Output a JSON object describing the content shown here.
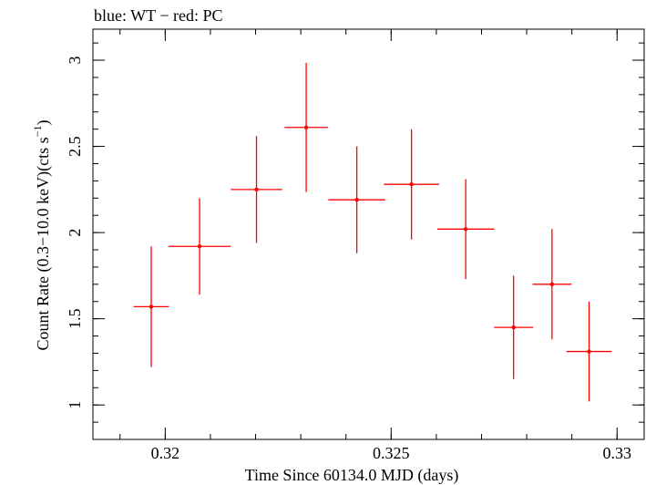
{
  "chart_data": {
    "type": "scatter",
    "title": "blue: WT − red: PC",
    "xlabel": "Time Since 60134.0 MJD (days)",
    "ylabel_main": "Count Rate (0.3−10.0 keV)(cts s",
    "ylabel_sup": "−1",
    "ylabel_close": ")",
    "xlim": [
      0.3184,
      0.3306
    ],
    "ylim": [
      0.8,
      3.18
    ],
    "x_ticks": [
      {
        "value": 0.32,
        "label": "0.32"
      },
      {
        "value": 0.325,
        "label": "0.325"
      },
      {
        "value": 0.33,
        "label": "0.33"
      }
    ],
    "y_ticks": [
      {
        "value": 1,
        "label": "1"
      },
      {
        "value": 1.5,
        "label": "1.5"
      },
      {
        "value": 2,
        "label": "2"
      },
      {
        "value": 2.5,
        "label": "2.5"
      },
      {
        "value": 3,
        "label": "3"
      }
    ],
    "x_minor_step": 0.001,
    "y_minor_step": 0.1,
    "grid": false,
    "series": [
      {
        "color": "#ff0000",
        "points": [
          {
            "x": 0.31969,
            "xerr": 0.00039,
            "y": 1.57,
            "yerr": 0.35
          },
          {
            "x": 0.32076,
            "xerr": 0.00069,
            "y": 1.92,
            "yerr": 0.28
          },
          {
            "x": 0.32202,
            "xerr": 0.00057,
            "y": 2.25,
            "yerr": 0.31
          },
          {
            "x": 0.32312,
            "xerr": 0.00048,
            "y": 2.61,
            "yerr": 0.375
          },
          {
            "x": 0.32424,
            "xerr": 0.00063,
            "y": 2.19,
            "yerr": 0.31
          },
          {
            "x": 0.32545,
            "xerr": 0.00061,
            "y": 2.28,
            "yerr": 0.32
          },
          {
            "x": 0.32665,
            "xerr": 0.00063,
            "y": 2.02,
            "yerr": 0.29
          },
          {
            "x": 0.32771,
            "xerr": 0.00043,
            "y": 1.45,
            "yerr": 0.3
          },
          {
            "x": 0.32856,
            "xerr": 0.00043,
            "y": 1.7,
            "yerr": 0.32
          },
          {
            "x": 0.32938,
            "xerr": 0.0005,
            "y": 1.31,
            "yerr": 0.29
          }
        ]
      }
    ]
  }
}
